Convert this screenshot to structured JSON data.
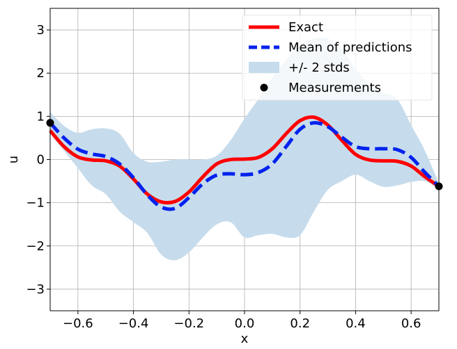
{
  "chart_data": {
    "type": "line",
    "title": "",
    "xlabel": "x",
    "ylabel": "u",
    "xlim": [
      -0.7,
      0.7
    ],
    "ylim": [
      -3.5,
      3.5
    ],
    "grid": true,
    "legend_position": "top-right",
    "x_ticks": [
      -0.6,
      -0.4,
      -0.2,
      0.0,
      0.2,
      0.4,
      0.6
    ],
    "x_tick_labels": [
      "−0.6",
      "−0.4",
      "−0.2",
      "0.0",
      "0.2",
      "0.4",
      "0.6"
    ],
    "y_ticks": [
      -3,
      -2,
      -1,
      0,
      1,
      2,
      3
    ],
    "y_tick_labels": [
      "−3",
      "−2",
      "−1",
      "0",
      "1",
      "2",
      "3"
    ],
    "x": [
      -0.7,
      -0.65,
      -0.6,
      -0.55,
      -0.5,
      -0.45,
      -0.4,
      -0.35,
      -0.3,
      -0.25,
      -0.2,
      -0.15,
      -0.1,
      -0.05,
      0.0,
      0.05,
      0.1,
      0.15,
      0.2,
      0.25,
      0.3,
      0.35,
      0.4,
      0.45,
      0.5,
      0.55,
      0.6,
      0.65,
      0.7
    ],
    "series": [
      {
        "name": "Exact",
        "style": "solid",
        "color": "#ff0000",
        "values": [
          0.67,
          0.3,
          0.06,
          -0.01,
          -0.03,
          -0.15,
          -0.45,
          -0.8,
          -0.98,
          -0.97,
          -0.75,
          -0.4,
          -0.1,
          0.0,
          0.01,
          0.05,
          0.25,
          0.6,
          0.9,
          0.98,
          0.8,
          0.45,
          0.12,
          -0.01,
          -0.03,
          -0.04,
          -0.15,
          -0.4,
          -0.62
        ]
      },
      {
        "name": "Mean of predictions",
        "style": "dashed",
        "color": "#0022ee",
        "values": [
          0.85,
          0.5,
          0.24,
          0.13,
          0.07,
          -0.1,
          -0.42,
          -0.82,
          -1.1,
          -1.13,
          -0.88,
          -0.56,
          -0.36,
          -0.33,
          -0.35,
          -0.3,
          -0.1,
          0.3,
          0.7,
          0.85,
          0.76,
          0.52,
          0.3,
          0.25,
          0.25,
          0.23,
          0.05,
          -0.3,
          -0.62
        ]
      },
      {
        "name": "+/- 2 stds",
        "style": "band",
        "color": "#c6dcec",
        "upper": [
          1.1,
          0.78,
          0.62,
          0.7,
          0.72,
          0.6,
          0.15,
          -0.05,
          -0.05,
          0.0,
          0.0,
          0.0,
          0.09,
          0.45,
          0.95,
          1.4,
          1.9,
          2.3,
          2.65,
          2.8,
          2.8,
          2.55,
          2.1,
          1.75,
          1.55,
          1.4,
          0.8,
          0.2,
          -0.55
        ],
        "lower": [
          0.6,
          0.2,
          -0.2,
          -0.6,
          -0.8,
          -1.2,
          -1.45,
          -1.7,
          -2.2,
          -2.33,
          -2.15,
          -1.8,
          -1.5,
          -1.45,
          -1.8,
          -1.75,
          -1.72,
          -1.8,
          -1.75,
          -1.2,
          -0.7,
          -0.5,
          -0.35,
          -0.5,
          -0.63,
          -0.6,
          -0.52,
          -0.5,
          -0.7
        ]
      },
      {
        "name": "Measurements",
        "style": "markers",
        "color": "#000000",
        "x": [
          -0.7,
          0.7
        ],
        "values": [
          0.85,
          -0.62
        ]
      }
    ]
  }
}
